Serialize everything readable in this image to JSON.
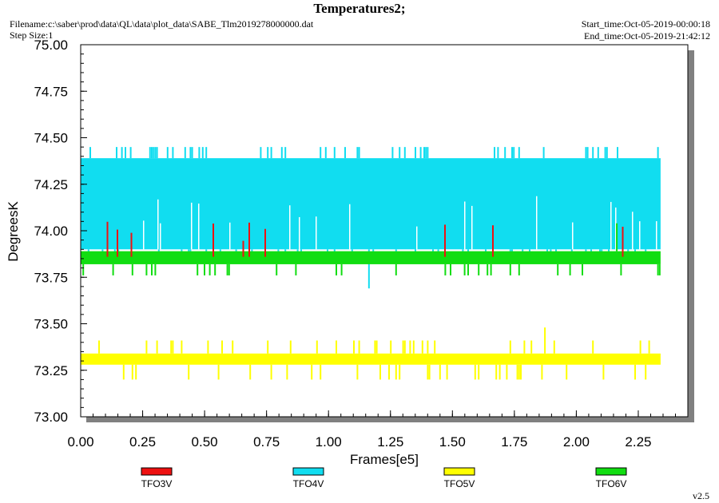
{
  "header": {
    "title": "Temperatures2;",
    "filename": "Filename:c:\\saber\\prod\\data\\QL\\data\\plot_data\\SABE_Tlm2019278000000.dat",
    "step_size": "Step Size:1",
    "start_time": "Start_time:Oct-05-2019-00:00:18",
    "end_time": "End_time:Oct-05-2019-21:42:12"
  },
  "footer": {
    "version": "v2.5"
  },
  "chart_data": {
    "type": "line",
    "title": "Temperatures2;",
    "xlabel": "Frames[e5]",
    "ylabel": "DegreesK",
    "xlim": [
      0,
      2.45
    ],
    "ylim": [
      73.0,
      75.0
    ],
    "x_ticks": [
      "0.00",
      "0.25",
      "0.50",
      "0.75",
      "1.00",
      "1.25",
      "1.50",
      "1.75",
      "2.00",
      "2.25"
    ],
    "y_ticks": [
      "73.00",
      "73.25",
      "73.50",
      "73.75",
      "74.00",
      "74.25",
      "74.50",
      "74.75",
      "75.00"
    ],
    "x_tick_values": [
      0,
      0.25,
      0.5,
      0.75,
      1.0,
      1.25,
      1.5,
      1.75,
      2.0,
      2.25
    ],
    "y_tick_values": [
      73.0,
      73.25,
      73.5,
      73.75,
      74.0,
      74.25,
      74.5,
      74.75,
      75.0
    ],
    "legend_position": "bottom",
    "grid": false,
    "x_range_of_data": [
      0.0,
      2.34
    ],
    "series": [
      {
        "name": "TFO3V",
        "color": "#ee1111",
        "band": [
          73.9,
          74.05
        ]
      },
      {
        "name": "TFO4V",
        "color": "#11ddf0",
        "band": [
          73.9,
          74.39
        ],
        "spikes_high": 74.45,
        "spikes_low": 73.88,
        "min": 73.69
      },
      {
        "name": "TFO5V",
        "color": "#ffff00",
        "band": [
          73.28,
          73.34
        ],
        "spikes_high": 73.41,
        "spikes_low": 73.2,
        "max": 73.48
      },
      {
        "name": "TFO6V",
        "color": "#11dd11",
        "band": [
          73.82,
          73.89
        ],
        "spikes_low": 73.76,
        "max": 74.04
      }
    ]
  }
}
